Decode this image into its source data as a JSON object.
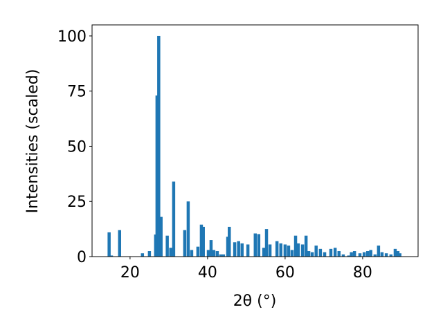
{
  "chart_data": {
    "type": "bar",
    "xlabel": "2θ (°)",
    "ylabel": "Intensities (scaled)",
    "x": [
      14.6,
      15.2,
      17.3,
      23.2,
      25.0,
      26.6,
      26.96,
      27.4,
      28.0,
      29.6,
      30.5,
      31.25,
      34.1,
      35.0,
      35.9,
      37.5,
      38.4,
      38.9,
      40.2,
      40.9,
      41.6,
      42.5,
      43.4,
      44.1,
      45.2,
      45.6,
      47.0,
      48.0,
      48.9,
      50.4,
      52.3,
      53.2,
      54.5,
      55.2,
      56.1,
      57.9,
      58.9,
      60.0,
      60.9,
      61.8,
      62.7,
      63.4,
      64.5,
      65.4,
      66.1,
      67.0,
      68.0,
      69.1,
      70.2,
      71.8,
      72.9,
      73.9,
      75.0,
      76.4,
      77.1,
      77.9,
      79.3,
      80.4,
      81.3,
      82.1,
      83.2,
      84.1,
      85.0,
      86.1,
      87.3,
      88.4,
      89.1,
      89.6
    ],
    "values": [
      11,
      0.5,
      12,
      1.5,
      2.5,
      10,
      73,
      100,
      18,
      9.5,
      4,
      34,
      12,
      25,
      3,
      4.5,
      14.5,
      13.5,
      3,
      7.5,
      3,
      2.5,
      1,
      1,
      9,
      13.5,
      6.5,
      7,
      6,
      5.5,
      10.5,
      10.2,
      4,
      12.5,
      5.5,
      7,
      6,
      5.5,
      5,
      3,
      9.5,
      6,
      5.5,
      9.5,
      2.5,
      2,
      5,
      3.5,
      2,
      3.5,
      4,
      2.5,
      1,
      0.5,
      2,
      2.5,
      1.5,
      2,
      2.5,
      3,
      1,
      5,
      2,
      1.5,
      1,
      3.5,
      2.5,
      1.5
    ],
    "color": "#1f77b4",
    "xlim": [
      10.2,
      94.3
    ],
    "xticks": [
      20,
      40,
      60,
      80
    ],
    "ylim": [
      0,
      105
    ],
    "yticks": [
      0,
      25,
      50,
      75,
      100
    ]
  }
}
